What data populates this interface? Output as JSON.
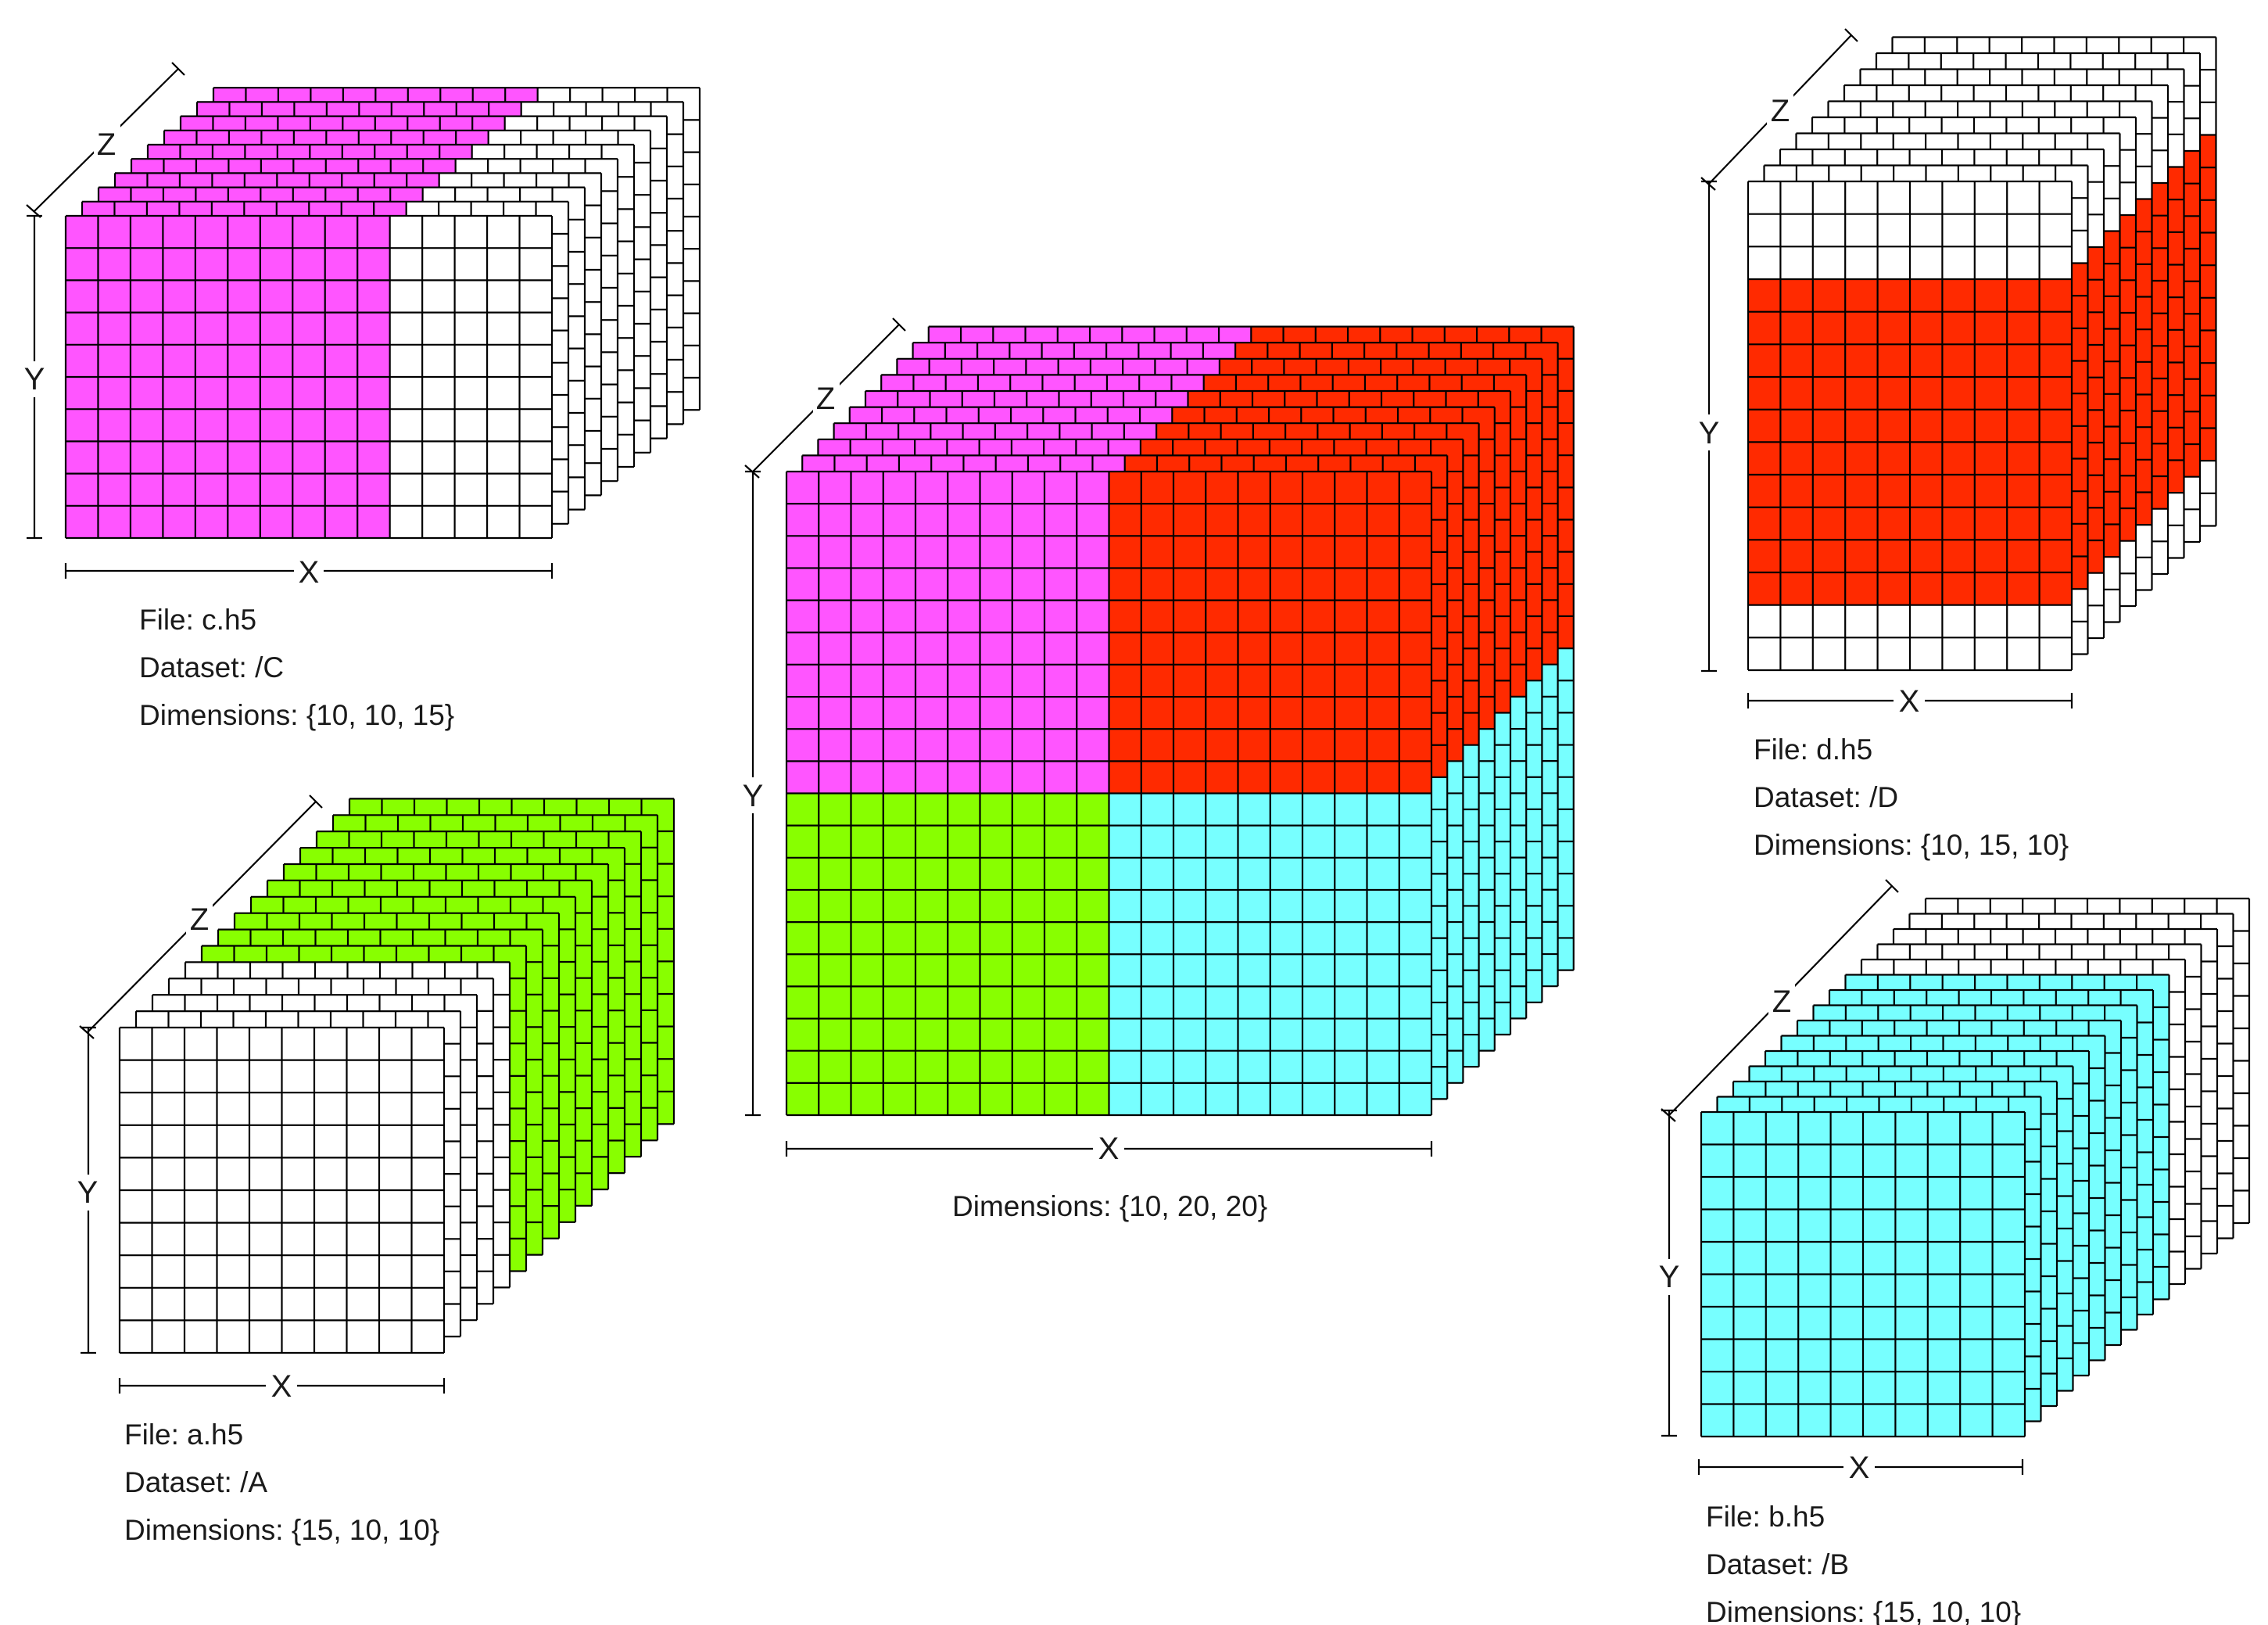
{
  "colors": {
    "magenta": "#FF55FF",
    "red": "#FF2A00",
    "green": "#88FF00",
    "cyan": "#77FFFF",
    "white": "#FFFFFF",
    "grid": "#000000"
  },
  "axes": {
    "x": "X",
    "y": "Y",
    "z": "Z"
  },
  "datasets": {
    "c": {
      "file": "File: c.h5",
      "dataset": "Dataset: /C",
      "dimensions": "Dimensions: {10, 10, 15}",
      "fill": "magenta",
      "cols": 15,
      "rows": 10,
      "layers": 10,
      "filled_cols": [
        0,
        10
      ],
      "filled_rows": [
        0,
        10
      ]
    },
    "a": {
      "file": "File: a.h5",
      "dataset": "Dataset: /A",
      "dimensions": "Dimensions: {15, 10, 10}",
      "fill": "green",
      "cols": 10,
      "rows": 10,
      "layers": 15,
      "filled_layers": [
        5,
        15
      ]
    },
    "combined": {
      "dimensions": "Dimensions: {10, 20, 20}",
      "cols": 20,
      "rows": 20,
      "layers": 10,
      "quadrants": [
        "magenta",
        "red",
        "green",
        "cyan"
      ]
    },
    "d": {
      "file": "File: d.h5",
      "dataset": "Dataset: /D",
      "dimensions": "Dimensions: {10, 15, 10}",
      "fill": "red",
      "cols": 10,
      "rows": 15,
      "layers": 10,
      "filled_rows": [
        3,
        13
      ]
    },
    "b": {
      "file": "File: b.h5",
      "dataset": "Dataset: /B",
      "dimensions": "Dimensions: {15, 10, 10}",
      "fill": "cyan",
      "cols": 10,
      "rows": 10,
      "layers": 15,
      "filled_layers": [
        0,
        10
      ]
    }
  }
}
